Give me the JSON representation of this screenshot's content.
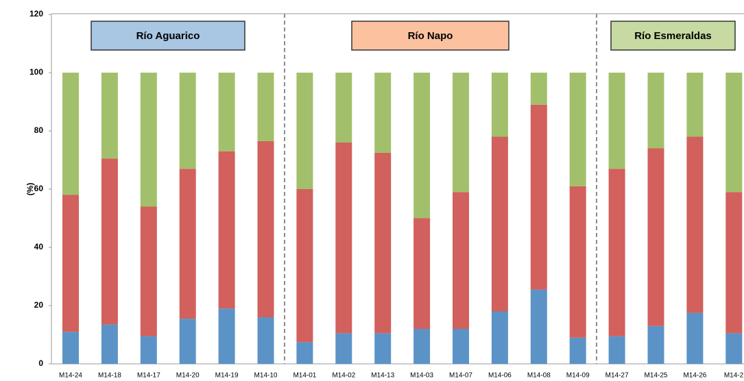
{
  "chart_data": {
    "type": "stacked_bar",
    "y_label": "(%)",
    "categories": [
      "M14-24",
      "M14-18",
      "M14-17",
      "M14-20",
      "M14-19",
      "M14-10",
      "M14-01",
      "M14-02",
      "M14-13",
      "M14-03",
      "M14-07",
      "M14-06",
      "M14-08",
      "M14-09",
      "M14-27",
      "M14-25",
      "M14-26",
      "M14-2"
    ],
    "series": [
      {
        "color": "#5b93c7",
        "values": [
          11,
          13.5,
          9.5,
          15.5,
          19,
          16,
          7.5,
          10.5,
          10.5,
          12,
          12,
          18,
          25.5,
          9,
          9.5,
          13,
          17.5,
          10.5
        ]
      },
      {
        "color": "#d2605c",
        "values": [
          47,
          57,
          44.5,
          51.5,
          54,
          60.5,
          52.5,
          65.5,
          62,
          38,
          47,
          60,
          63.5,
          52,
          57.5,
          61,
          60.5,
          48.5
        ]
      },
      {
        "color": "#a2c06b",
        "values": [
          42,
          29.5,
          46,
          33,
          27,
          23.5,
          40,
          24,
          27.5,
          50,
          41,
          22,
          11,
          39,
          33,
          26,
          22,
          41
        ]
      }
    ],
    "ylim": [
      0,
      120
    ],
    "yticks": [
      0,
      20,
      40,
      60,
      80,
      100,
      120
    ],
    "groups": [
      {
        "label": "Río Aguarico",
        "color": "#a9c6e2"
      },
      {
        "label": "Río Napo",
        "color": "#fcc2a0"
      },
      {
        "label": "Río Esmeraldas",
        "color": "#c6daa2"
      }
    ]
  }
}
